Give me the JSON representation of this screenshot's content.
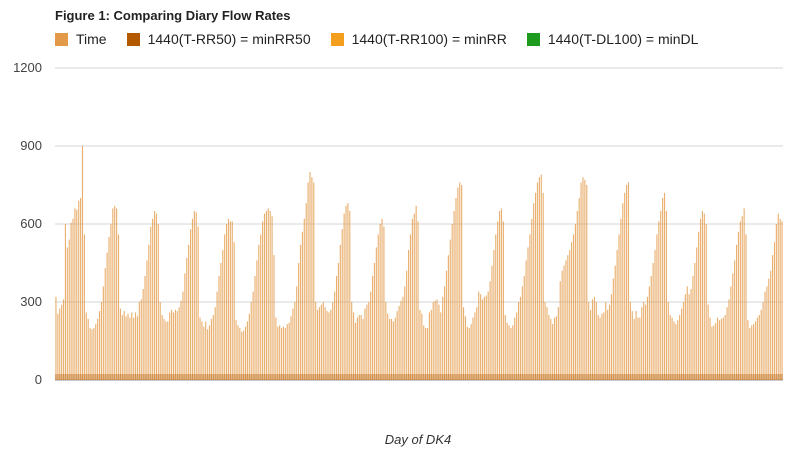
{
  "chart_data": {
    "type": "bar",
    "title": "Figure 1: Comparing Diary Flow Rates",
    "xlabel": "Day of DK4",
    "ylabel": "",
    "ylim": [
      0,
      1200
    ],
    "yticks": [
      0,
      300,
      600,
      900,
      1200
    ],
    "grid": true,
    "legend_position": "top-left",
    "series": [
      {
        "name": "Time",
        "color": "#e39a48",
        "values": [
          320,
          255,
          275,
          290,
          310,
          600,
          510,
          540,
          605,
          620,
          660,
          655,
          690,
          700,
          900,
          560,
          260,
          235,
          200,
          195,
          200,
          215,
          235,
          265,
          300,
          360,
          430,
          490,
          550,
          600,
          660,
          670,
          660,
          560,
          275,
          250,
          265,
          245,
          255,
          240,
          260,
          240,
          260,
          245,
          300,
          310,
          350,
          400,
          460,
          520,
          590,
          620,
          650,
          640,
          600,
          300,
          250,
          235,
          225,
          225,
          260,
          270,
          260,
          270,
          265,
          280,
          305,
          340,
          410,
          470,
          520,
          580,
          620,
          650,
          645,
          590,
          240,
          225,
          205,
          225,
          195,
          210,
          235,
          250,
          280,
          340,
          400,
          450,
          500,
          560,
          600,
          620,
          610,
          610,
          530,
          230,
          210,
          200,
          185,
          190,
          205,
          225,
          255,
          300,
          340,
          400,
          460,
          520,
          560,
          610,
          640,
          650,
          660,
          650,
          630,
          480,
          240,
          205,
          210,
          200,
          205,
          200,
          215,
          220,
          245,
          275,
          300,
          360,
          450,
          520,
          570,
          620,
          680,
          760,
          800,
          780,
          760,
          300,
          270,
          280,
          290,
          300,
          280,
          265,
          260,
          270,
          300,
          340,
          400,
          450,
          520,
          580,
          640,
          670,
          680,
          650,
          300,
          260,
          220,
          240,
          250,
          250,
          235,
          275,
          290,
          300,
          340,
          400,
          450,
          510,
          560,
          600,
          620,
          590,
          300,
          255,
          235,
          235,
          225,
          240,
          265,
          285,
          305,
          320,
          360,
          420,
          500,
          560,
          620,
          640,
          670,
          610,
          270,
          255,
          210,
          200,
          200,
          260,
          270,
          300,
          305,
          310,
          290,
          260,
          320,
          360,
          420,
          480,
          540,
          600,
          650,
          700,
          740,
          760,
          750,
          280,
          245,
          205,
          200,
          215,
          240,
          260,
          280,
          340,
          330,
          310,
          320,
          325,
          340,
          380,
          440,
          500,
          560,
          610,
          650,
          660,
          610,
          250,
          220,
          210,
          200,
          210,
          240,
          260,
          300,
          320,
          360,
          400,
          460,
          510,
          560,
          620,
          680,
          720,
          760,
          780,
          790,
          720,
          300,
          280,
          250,
          235,
          215,
          240,
          245,
          280,
          380,
          420,
          440,
          460,
          480,
          500,
          530,
          560,
          600,
          650,
          700,
          760,
          780,
          770,
          750,
          300,
          270,
          310,
          320,
          300,
          250,
          240,
          255,
          260,
          300,
          270,
          290,
          330,
          390,
          440,
          500,
          560,
          620,
          680,
          720,
          750,
          760,
          300,
          265,
          235,
          265,
          240,
          240,
          280,
          300,
          290,
          320,
          360,
          400,
          450,
          500,
          560,
          610,
          650,
          700,
          720,
          650,
          300,
          250,
          240,
          225,
          215,
          230,
          250,
          275,
          300,
          330,
          360,
          330,
          350,
          400,
          450,
          510,
          570,
          620,
          650,
          640,
          600,
          290,
          240,
          205,
          210,
          220,
          240,
          230,
          235,
          240,
          250,
          280,
          310,
          360,
          410,
          460,
          520,
          570,
          610,
          630,
          660,
          560,
          230,
          200,
          210,
          215,
          225,
          240,
          250,
          270,
          300,
          340,
          360,
          390,
          420,
          480,
          530,
          600,
          640,
          620,
          610
        ]
      },
      {
        "name": "1440(T-RR50) = minRR50",
        "color": "#b35a00",
        "values": []
      },
      {
        "name": "1440(T-RR100) = minRR",
        "color": "#f49e1d",
        "values": []
      },
      {
        "name": "1440(T-DL100) = minDL",
        "color": "#1e9a1e",
        "values": []
      }
    ]
  }
}
